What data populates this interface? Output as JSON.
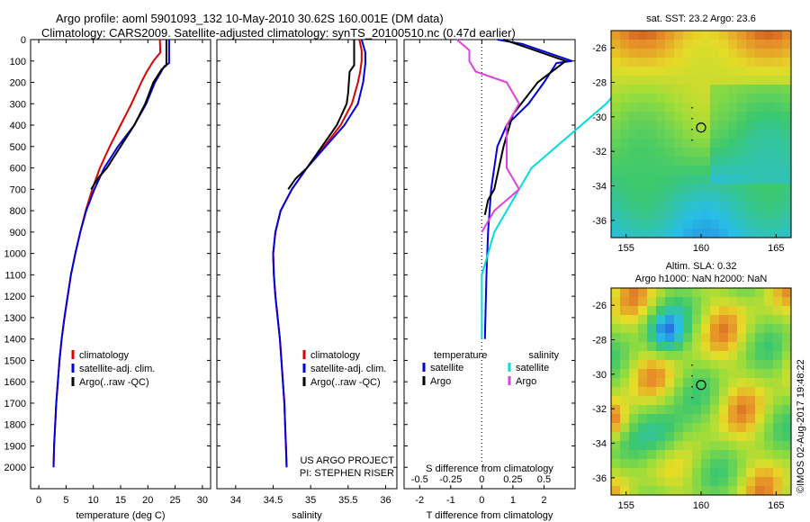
{
  "header": {
    "title_line1": "Argo profile: aoml 5901093_132 10-May-2010 30.62S 160.001E (DM data)",
    "title_line2": "Climatology: CARS2009. Satellite-adjusted climatology: synTS_20100510.nc (0.47d earlier)"
  },
  "colors": {
    "climatology": "#dd0000",
    "satellite": "#0000dd",
    "argo": "#000000",
    "argo_salinity": "#e040e0",
    "satellite_salinity": "#00dddd"
  },
  "depth_axis": {
    "ticks": [
      "0",
      "100",
      "200",
      "300",
      "400",
      "500",
      "600",
      "700",
      "800",
      "900",
      "1000",
      "1100",
      "1200",
      "1300",
      "1400",
      "1500",
      "1600",
      "1700",
      "1800",
      "1900",
      "2000"
    ],
    "range": [
      0,
      2100
    ]
  },
  "chart_data": [
    {
      "type": "line",
      "id": "temperature",
      "xlabel": "temperature (deg C)",
      "xlim": [
        -1.5,
        31.5
      ],
      "x_ticks": [
        "0",
        "5",
        "10",
        "15",
        "20",
        "25",
        "30"
      ],
      "ylim": [
        2100,
        0
      ],
      "legend": [
        "climatology",
        "satellite-adj. clim.",
        "Argo(..raw -QC)"
      ],
      "series": [
        {
          "name": "climatology",
          "color": "#dd0000",
          "points": [
            [
              22.2,
              0
            ],
            [
              22.3,
              60
            ],
            [
              21.0,
              100
            ],
            [
              19.8,
              150
            ],
            [
              18.8,
              200
            ],
            [
              17.0,
              300
            ],
            [
              15.0,
              400
            ],
            [
              13.0,
              500
            ],
            [
              11.2,
              600
            ],
            [
              9.8,
              700
            ],
            [
              8.6,
              800
            ],
            [
              7.6,
              900
            ],
            [
              6.7,
              1000
            ],
            [
              5.9,
              1100
            ],
            [
              5.3,
              1200
            ],
            [
              4.7,
              1300
            ],
            [
              4.2,
              1400
            ],
            [
              3.8,
              1500
            ],
            [
              3.5,
              1600
            ],
            [
              3.2,
              1700
            ],
            [
              3.0,
              1800
            ],
            [
              2.8,
              1900
            ],
            [
              2.7,
              2000
            ]
          ]
        },
        {
          "name": "satellite-adj. clim.",
          "color": "#0000dd",
          "points": [
            [
              23.9,
              0
            ],
            [
              23.9,
              110
            ],
            [
              23.0,
              125
            ],
            [
              21.3,
              200
            ],
            [
              19.7,
              300
            ],
            [
              17.5,
              400
            ],
            [
              14.5,
              500
            ],
            [
              12.0,
              600
            ],
            [
              10.2,
              700
            ],
            [
              8.7,
              800
            ],
            [
              7.6,
              900
            ],
            [
              6.7,
              1000
            ],
            [
              5.9,
              1100
            ],
            [
              5.3,
              1200
            ],
            [
              4.7,
              1300
            ],
            [
              4.2,
              1400
            ],
            [
              3.8,
              1500
            ],
            [
              3.5,
              1600
            ],
            [
              3.2,
              1700
            ],
            [
              3.0,
              1800
            ],
            [
              2.8,
              1900
            ],
            [
              2.7,
              2000
            ]
          ]
        },
        {
          "name": "Argo(..raw -QC)",
          "color": "#000000",
          "points": [
            [
              23.4,
              0
            ],
            [
              23.4,
              120
            ],
            [
              22.5,
              140
            ],
            [
              21.0,
              200
            ],
            [
              19.5,
              300
            ],
            [
              17.5,
              400
            ],
            [
              15.0,
              500
            ],
            [
              12.5,
              600
            ],
            [
              10.8,
              650
            ],
            [
              9.6,
              700
            ]
          ]
        }
      ]
    },
    {
      "type": "line",
      "id": "salinity",
      "xlabel": "salinity",
      "xlim": [
        33.75,
        36.15
      ],
      "x_ticks": [
        "34",
        "34.5",
        "35",
        "35.5",
        "36"
      ],
      "ylim": [
        2100,
        0
      ],
      "legend": [
        "climatology",
        "satellite-adj. clim.",
        "Argo(..raw -QC)"
      ],
      "annotation": [
        "US ARGO PROJECT",
        "PI: STEPHEN RISER"
      ],
      "series": [
        {
          "name": "climatology",
          "color": "#dd0000",
          "points": [
            [
              35.65,
              0
            ],
            [
              35.68,
              50
            ],
            [
              35.68,
              100
            ],
            [
              35.66,
              150
            ],
            [
              35.63,
              200
            ],
            [
              35.55,
              300
            ],
            [
              35.4,
              400
            ],
            [
              35.18,
              500
            ],
            [
              34.95,
              600
            ],
            [
              34.75,
              700
            ],
            [
              34.6,
              800
            ],
            [
              34.53,
              900
            ],
            [
              34.5,
              1000
            ],
            [
              34.51,
              1100
            ],
            [
              34.53,
              1200
            ],
            [
              34.56,
              1300
            ],
            [
              34.59,
              1400
            ],
            [
              34.61,
              1500
            ],
            [
              34.63,
              1600
            ],
            [
              34.65,
              1700
            ],
            [
              34.66,
              1800
            ],
            [
              34.67,
              1900
            ],
            [
              34.68,
              2000
            ]
          ]
        },
        {
          "name": "satellite-adj. clim.",
          "color": "#0000dd",
          "points": [
            [
              35.68,
              0
            ],
            [
              35.73,
              60
            ],
            [
              35.73,
              110
            ],
            [
              35.7,
              200
            ],
            [
              35.63,
              300
            ],
            [
              35.45,
              400
            ],
            [
              35.2,
              500
            ],
            [
              34.95,
              600
            ],
            [
              34.75,
              700
            ],
            [
              34.6,
              800
            ],
            [
              34.53,
              900
            ],
            [
              34.5,
              1000
            ],
            [
              34.51,
              1100
            ],
            [
              34.53,
              1200
            ],
            [
              34.56,
              1300
            ],
            [
              34.59,
              1400
            ],
            [
              34.61,
              1500
            ],
            [
              34.63,
              1600
            ],
            [
              34.65,
              1700
            ],
            [
              34.66,
              1800
            ],
            [
              34.67,
              1900
            ],
            [
              34.68,
              2000
            ]
          ]
        },
        {
          "name": "Argo(..raw -QC)",
          "color": "#000000",
          "points": [
            [
              35.58,
              0
            ],
            [
              35.58,
              120
            ],
            [
              35.52,
              150
            ],
            [
              35.5,
              250
            ],
            [
              35.48,
              300
            ],
            [
              35.35,
              400
            ],
            [
              35.15,
              500
            ],
            [
              34.95,
              600
            ],
            [
              34.8,
              650
            ],
            [
              34.7,
              700
            ]
          ]
        }
      ]
    },
    {
      "type": "line",
      "id": "difference",
      "xlabel": "T difference from climatology",
      "xlabel2": "S difference from climatology",
      "xlim": [
        -2.5,
        3.0
      ],
      "x_ticks": [
        "-2",
        "-1",
        "0",
        "1",
        "2"
      ],
      "x2_ticks": [
        "-0.5",
        "-0.25",
        "0",
        "0.25",
        "0.5"
      ],
      "ylim": [
        2100,
        0
      ],
      "legend_left_header": "temperature",
      "legend_right_header": "salinity",
      "legend": [
        "satellite",
        "Argo",
        "satellite",
        "Argo"
      ],
      "series": [
        {
          "name": "T satellite",
          "color": "#0000dd",
          "points": [
            [
              0.5,
              0
            ],
            [
              1.3,
              20
            ],
            [
              2.9,
              100
            ],
            [
              2.4,
              110
            ],
            [
              2.0,
              200
            ],
            [
              1.5,
              300
            ],
            [
              0.8,
              400
            ],
            [
              0.5,
              500
            ],
            [
              0.3,
              700
            ],
            [
              0.2,
              900
            ],
            [
              0.15,
              1100
            ],
            [
              0.1,
              1400
            ]
          ]
        },
        {
          "name": "T Argo",
          "color": "#000000",
          "points": [
            [
              0.7,
              0
            ],
            [
              1.3,
              30
            ],
            [
              2.7,
              100
            ],
            [
              1.8,
              200
            ],
            [
              1.0,
              350
            ],
            [
              0.7,
              500
            ],
            [
              0.4,
              700
            ],
            [
              0.2,
              750
            ],
            [
              0.1,
              820
            ]
          ]
        },
        {
          "name": "S satellite",
          "color": "#00dddd",
          "points": [
            [
              1.1,
              30
            ],
            [
              1.2,
              100
            ],
            [
              1.15,
              200
            ],
            [
              1.0,
              300
            ],
            [
              0.8,
              400
            ],
            [
              0.6,
              500
            ],
            [
              0.4,
              600
            ],
            [
              0.3,
              700
            ],
            [
              0.2,
              800
            ],
            [
              0.1,
              900
            ],
            [
              0.05,
              1000
            ],
            [
              0.0,
              1100
            ],
            [
              0.0,
              1400
            ]
          ]
        },
        {
          "name": "S Argo",
          "color": "#e040e0",
          "points": [
            [
              -0.2,
              0
            ],
            [
              -0.1,
              50
            ],
            [
              -0.1,
              100
            ],
            [
              -0.05,
              150
            ],
            [
              0.2,
              200
            ],
            [
              0.3,
              300
            ],
            [
              0.2,
              400
            ],
            [
              0.2,
              500
            ],
            [
              0.2,
              600
            ],
            [
              0.3,
              700
            ],
            [
              0.1,
              800
            ],
            [
              0.0,
              900
            ]
          ]
        }
      ]
    },
    {
      "type": "heatmap",
      "id": "sst-map",
      "title": "sat. SST: 23.2  Argo: 23.6",
      "x_ticks": [
        "155",
        "160",
        "165"
      ],
      "y_ticks": [
        "-26",
        "-28",
        "-30",
        "-32",
        "-34",
        "-36"
      ],
      "xlim": [
        154,
        166
      ],
      "ylim": [
        -37,
        -25
      ],
      "marker": [
        160.0,
        -30.62
      ]
    },
    {
      "type": "heatmap",
      "id": "sla-map",
      "title_line1": "Altim. SLA: 0.32",
      "title_line2": "Argo h1000: NaN h2000: NaN",
      "x_ticks": [
        "155",
        "160",
        "165"
      ],
      "y_ticks": [
        "-26",
        "-28",
        "-30",
        "-32",
        "-34",
        "-36"
      ],
      "xlim": [
        154,
        166
      ],
      "ylim": [
        -37,
        -25
      ],
      "marker": [
        160.0,
        -30.62
      ]
    }
  ],
  "credit": "©IMOS 02-Aug-2017 19:48:22"
}
